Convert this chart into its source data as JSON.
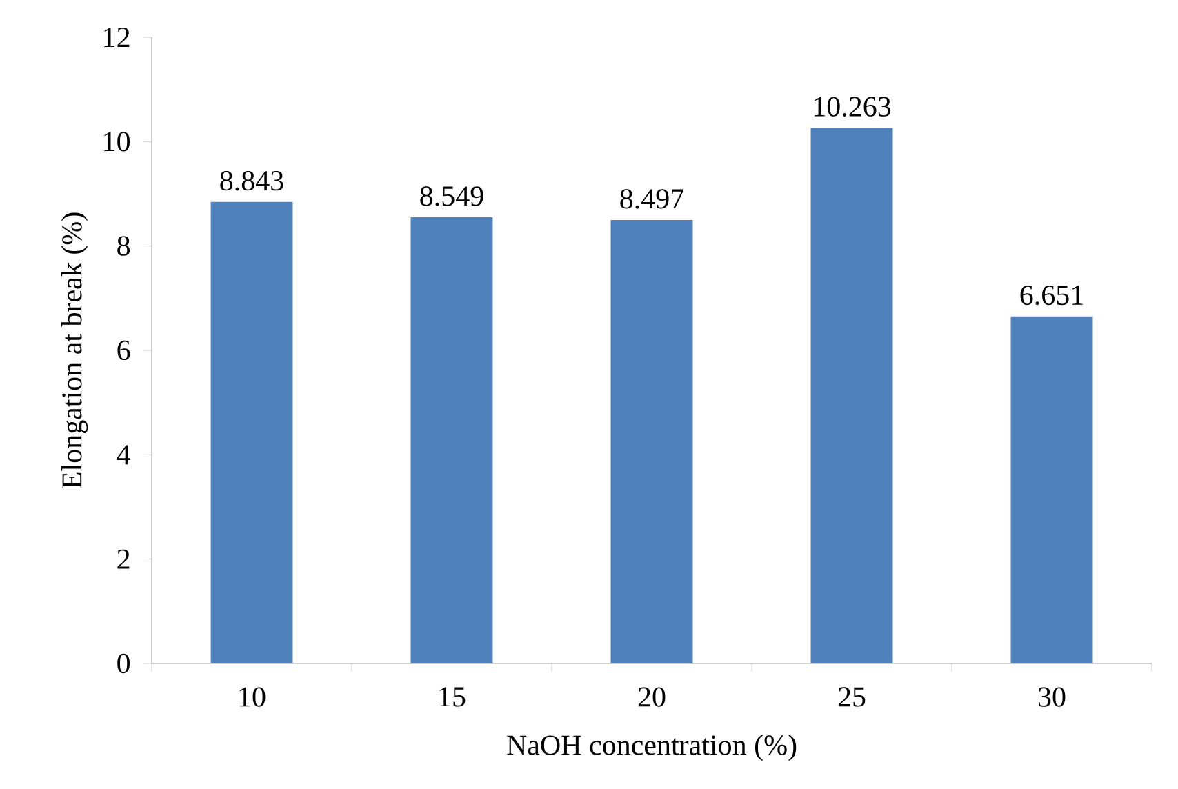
{
  "chart_data": {
    "type": "bar",
    "xlabel": "NaOH concentration (%)",
    "ylabel": "Elongation at break (%)",
    "categories": [
      "10",
      "15",
      "20",
      "25",
      "30"
    ],
    "values": [
      8.843,
      8.549,
      8.497,
      10.263,
      6.651
    ],
    "color": "#4f81bd",
    "ylim": [
      0,
      12
    ],
    "yticks": [
      0,
      2,
      4,
      6,
      8,
      10,
      12
    ],
    "data_labels": true,
    "grid": false
  }
}
